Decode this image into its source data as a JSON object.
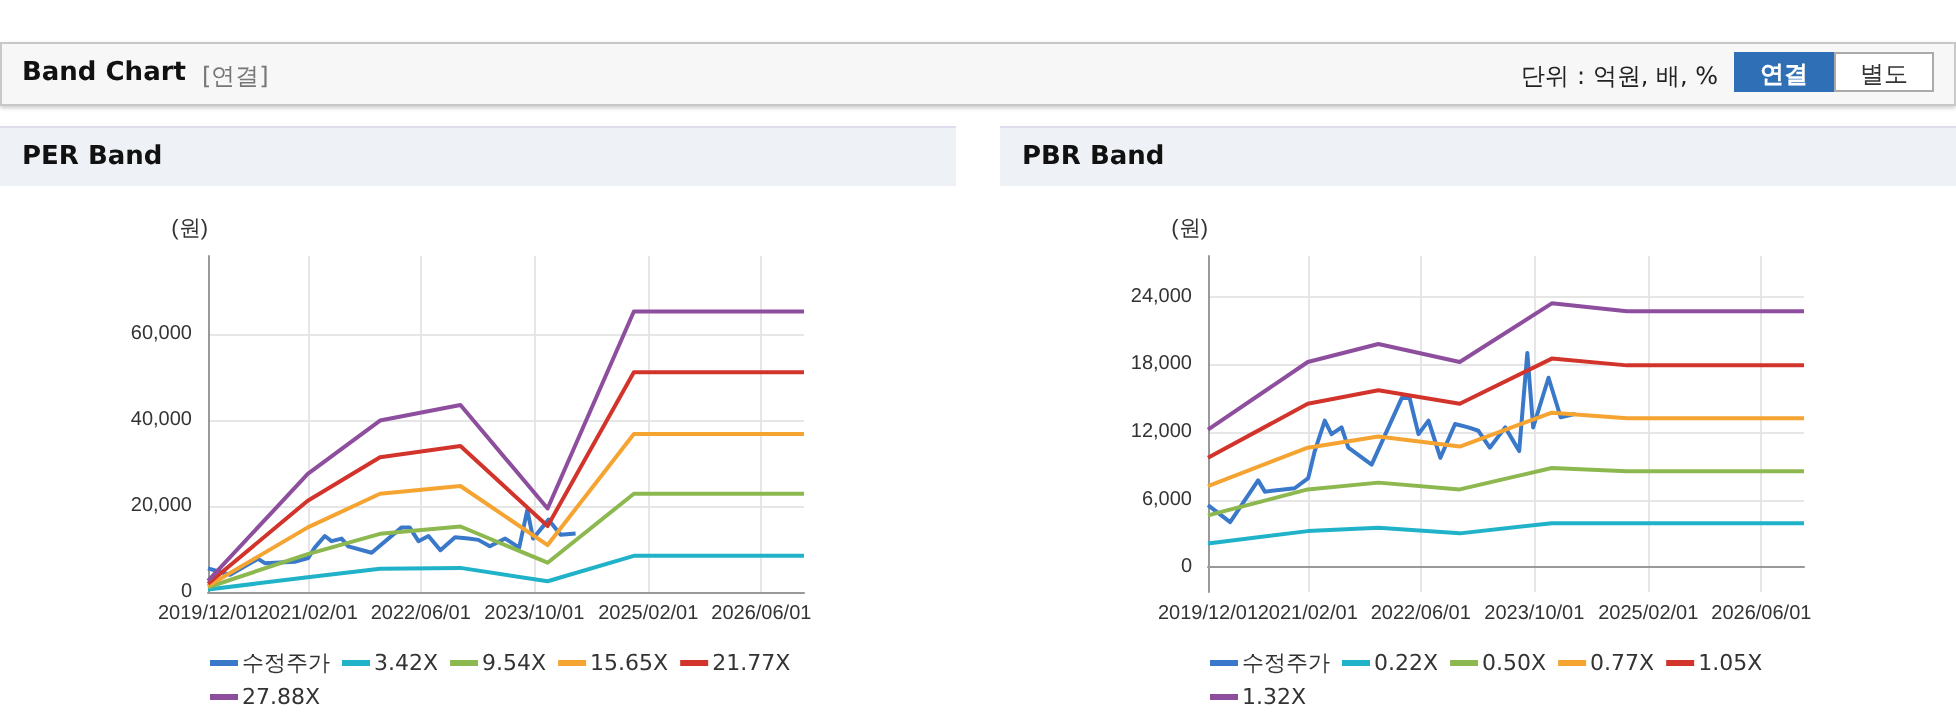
{
  "chart_data": [
    {
      "type": "line",
      "title": "PER Band",
      "ylabel": "(원)",
      "annotations": [
        "Band Chart",
        "[연결]",
        "단위 : 억원, 배, %",
        "연결",
        "별도"
      ],
      "grid": true,
      "legend": "bottom",
      "xlim": [
        "2019-12-01",
        "2026-12-01"
      ],
      "xticks": [
        {
          "value": "2019-12-01",
          "label": "2019/12/01"
        },
        {
          "value": "2021-02-01",
          "label": "2021/02/01"
        },
        {
          "value": "2022-06-01",
          "label": "2022/06/01"
        },
        {
          "value": "2023-10-01",
          "label": "2023/10/01"
        },
        {
          "value": "2025-02-01",
          "label": "2025/02/01"
        },
        {
          "value": "2026-06-01",
          "label": "2026/06/01"
        }
      ],
      "ylim": [
        0,
        78000
      ],
      "yticks": [
        0,
        {
          "value": 20000,
          "label": "20,000"
        },
        {
          "value": 40000,
          "label": "40,000"
        },
        {
          "value": 60000,
          "label": "60,000"
        }
      ],
      "series": [
        {
          "name": "수정주가",
          "color": "#3a78c9",
          "x": [
            "2019-12-01",
            "2020-03-05",
            "2020-07-03",
            "2020-08-01",
            "2020-12-07",
            "2021-02-03",
            "2021-03-03",
            "2021-04-15",
            "2021-05-14",
            "2021-06-26",
            "2021-07-25",
            "2021-11-02",
            "2022-03-11",
            "2022-04-14",
            "2022-05-22",
            "2022-07-04",
            "2022-08-24",
            "2022-10-26",
            "2022-12-22",
            "2023-02-03",
            "2023-03-24",
            "2023-05-29",
            "2023-07-28",
            "2023-09-01",
            "2023-09-26",
            "2023-12-01",
            "2024-01-22",
            "2024-03-26"
          ],
          "values": [
            5500,
            4000,
            7700,
            6700,
            7000,
            7900,
            10300,
            13000,
            11800,
            12400,
            10600,
            9100,
            15000,
            15000,
            11800,
            13000,
            9700,
            12700,
            12400,
            12100,
            10600,
            12400,
            10300,
            19000,
            12400,
            16800,
            13300,
            13600
          ]
        },
        {
          "name": "3.42X",
          "color": "#20b2c8",
          "x": [
            "2019-12-01",
            "2021-02-01",
            "2021-12-08",
            "2022-11-18",
            "2023-11-27",
            "2024-12-01",
            "2026-12-01"
          ],
          "values": [
            600,
            3400,
            5400,
            5600,
            2500,
            8400,
            8400
          ]
        },
        {
          "name": "9.54X",
          "color": "#8db850",
          "x": [
            "2019-12-01",
            "2021-02-01",
            "2021-12-08",
            "2022-11-18",
            "2023-11-27",
            "2024-12-01",
            "2026-12-01"
          ],
          "values": [
            1100,
            8800,
            13500,
            15200,
            6800,
            22800,
            22800
          ]
        },
        {
          "name": "15.65X",
          "color": "#f5a431",
          "x": [
            "2019-12-01",
            "2021-02-01",
            "2021-12-08",
            "2022-11-18",
            "2023-11-27",
            "2024-12-01",
            "2026-12-01"
          ],
          "values": [
            1400,
            15000,
            22800,
            24600,
            10900,
            36700,
            36700
          ]
        },
        {
          "name": "21.77X",
          "color": "#d2342c",
          "x": [
            "2019-12-01",
            "2021-02-01",
            "2021-12-08",
            "2022-11-18",
            "2023-11-27",
            "2024-12-01",
            "2026-12-01"
          ],
          "values": [
            1900,
            21200,
            31300,
            33900,
            15300,
            51000,
            51000
          ]
        },
        {
          "name": "27.88X",
          "color": "#8e4e9e",
          "x": [
            "2019-12-01",
            "2021-02-01",
            "2021-12-08",
            "2022-11-18",
            "2023-11-27",
            "2024-12-01",
            "2026-12-01"
          ],
          "values": [
            2600,
            27400,
            39800,
            43400,
            19400,
            65100,
            65100
          ]
        }
      ]
    },
    {
      "type": "line",
      "title": "PBR Band",
      "ylabel": "(원)",
      "grid": true,
      "legend": "bottom",
      "xlim": [
        "2019-12-01",
        "2026-12-01"
      ],
      "xticks": [
        {
          "value": "2019-12-01",
          "label": "2019/12/01"
        },
        {
          "value": "2021-02-01",
          "label": "2021/02/01"
        },
        {
          "value": "2022-06-01",
          "label": "2022/06/01"
        },
        {
          "value": "2023-10-01",
          "label": "2023/10/01"
        },
        {
          "value": "2025-02-01",
          "label": "2025/02/01"
        },
        {
          "value": "2026-06-01",
          "label": "2026/06/01"
        }
      ],
      "ylim": [
        -2200,
        27600
      ],
      "yticks": [
        0,
        {
          "value": 6000,
          "label": "6,000"
        },
        {
          "value": 12000,
          "label": "12,000"
        },
        {
          "value": 18000,
          "label": "18,000"
        },
        {
          "value": 24000,
          "label": "24,000"
        }
      ],
      "series": [
        {
          "name": "수정주가",
          "color": "#3a78c9",
          "x": [
            "2019-12-01",
            "2020-03-05",
            "2020-07-03",
            "2020-08-01",
            "2020-12-07",
            "2021-02-03",
            "2021-03-03",
            "2021-04-15",
            "2021-05-14",
            "2021-06-26",
            "2021-07-25",
            "2021-11-02",
            "2022-03-11",
            "2022-04-14",
            "2022-05-22",
            "2022-07-04",
            "2022-08-24",
            "2022-10-26",
            "2022-12-22",
            "2023-02-03",
            "2023-03-24",
            "2023-05-29",
            "2023-07-28",
            "2023-09-01",
            "2023-09-26",
            "2023-12-01",
            "2024-01-22",
            "2024-03-26"
          ],
          "values": [
            5500,
            4000,
            7700,
            6700,
            7000,
            7900,
            10300,
            13000,
            11800,
            12400,
            10600,
            9100,
            15000,
            15000,
            11800,
            13000,
            9700,
            12700,
            12400,
            12100,
            10600,
            12400,
            10300,
            19000,
            12400,
            16800,
            13300,
            13600
          ]
        },
        {
          "name": "0.22X",
          "color": "#20b2c8",
          "x": [
            "2019-12-01",
            "2021-02-01",
            "2021-12-01",
            "2022-11-15",
            "2023-12-15",
            "2024-11-01",
            "2026-12-01"
          ],
          "values": [
            2100,
            3200,
            3500,
            3000,
            3900,
            3900,
            3900
          ]
        },
        {
          "name": "0.50X",
          "color": "#8db850",
          "x": [
            "2019-12-01",
            "2021-02-01",
            "2021-12-01",
            "2022-11-15",
            "2023-12-15",
            "2024-11-01",
            "2026-12-01"
          ],
          "values": [
            4600,
            6900,
            7500,
            6900,
            8800,
            8500,
            8500
          ]
        },
        {
          "name": "0.77X",
          "color": "#f5a431",
          "x": [
            "2019-12-01",
            "2021-02-01",
            "2021-12-01",
            "2022-11-15",
            "2023-12-15",
            "2024-11-01",
            "2026-12-01"
          ],
          "values": [
            7200,
            10600,
            11600,
            10700,
            13700,
            13200,
            13200
          ]
        },
        {
          "name": "1.05X",
          "color": "#d2342c",
          "x": [
            "2019-12-01",
            "2021-02-01",
            "2021-12-01",
            "2022-11-15",
            "2023-12-15",
            "2024-11-01",
            "2026-12-01"
          ],
          "values": [
            9700,
            14500,
            15700,
            14500,
            18500,
            17900,
            17900
          ]
        },
        {
          "name": "1.32X",
          "color": "#8e4e9e",
          "x": [
            "2019-12-01",
            "2021-02-01",
            "2021-12-01",
            "2022-11-15",
            "2023-12-15",
            "2024-11-01",
            "2026-12-01"
          ],
          "values": [
            12200,
            18200,
            19800,
            18200,
            23400,
            22700,
            22700
          ]
        }
      ]
    }
  ]
}
